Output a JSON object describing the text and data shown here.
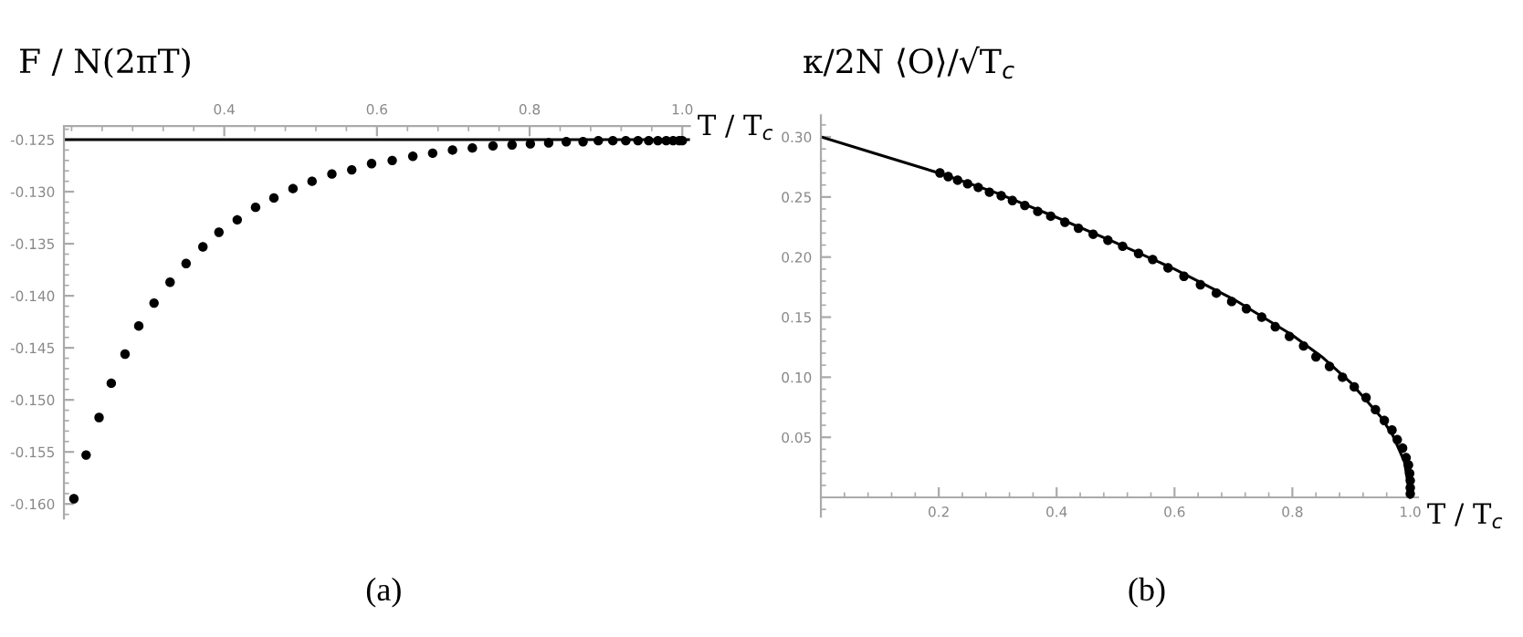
{
  "chart_data": [
    {
      "type": "scatter",
      "title": "(a)",
      "ylabel": "F / N(2πT)",
      "xlabel": "T / T$_{c}$",
      "marker": "circle",
      "grid": false,
      "legend": false,
      "xlim": [
        0.19,
        1.01
      ],
      "ylim": [
        -0.1614,
        -0.1237
      ],
      "xticks": [
        0.4,
        0.6,
        0.8,
        {
          "value": 1.0,
          "label": "1.0"
        }
      ],
      "yticks": [
        {
          "value": -0.125,
          "label": "-0.125"
        },
        {
          "value": -0.13,
          "label": "-0.130"
        },
        {
          "value": -0.135,
          "label": "-0.135"
        },
        {
          "value": -0.14,
          "label": "-0.140"
        },
        {
          "value": -0.145,
          "label": "-0.145"
        },
        {
          "value": -0.15,
          "label": "-0.150"
        },
        {
          "value": -0.155,
          "label": "-0.155"
        },
        {
          "value": -0.16,
          "label": "-0.160"
        }
      ],
      "ref_lines": [
        {
          "axis": "y",
          "value": -0.125,
          "color": "#000000",
          "line_style": "solid"
        }
      ],
      "series": [
        {
          "color": "#000000",
          "x": [
            0.203,
            0.219,
            0.236,
            0.252,
            0.27,
            0.288,
            0.308,
            0.329,
            0.35,
            0.372,
            0.393,
            0.417,
            0.441,
            0.465,
            0.49,
            0.515,
            0.541,
            0.567,
            0.593,
            0.62,
            0.647,
            0.673,
            0.699,
            0.725,
            0.752,
            0.777,
            0.801,
            0.825,
            0.848,
            0.87,
            0.89,
            0.909,
            0.926,
            0.942,
            0.956,
            0.968,
            0.979,
            0.988,
            0.996,
            1.0
          ],
          "values": [
            -0.1595,
            -0.1553,
            -0.1517,
            -0.1484,
            -0.1456,
            -0.1429,
            -0.1407,
            -0.1387,
            -0.1369,
            -0.1353,
            -0.1339,
            -0.1327,
            -0.1315,
            -0.1306,
            -0.1297,
            -0.129,
            -0.1283,
            -0.1279,
            -0.1273,
            -0.127,
            -0.1266,
            -0.1263,
            -0.126,
            -0.1258,
            -0.1256,
            -0.1255,
            -0.1254,
            -0.1253,
            -0.1252,
            -0.1252,
            -0.1251,
            -0.1251,
            -0.1251,
            -0.1251,
            -0.1251,
            -0.1251,
            -0.1251,
            -0.1251,
            -0.1251,
            -0.1251
          ]
        }
      ]
    },
    {
      "type": "scatter",
      "title": "(b)",
      "ylabel": "κ/2N ⟨O⟩/√T$_{c}$",
      "xlabel": "T / T$_{c}$",
      "grid": false,
      "legend": false,
      "xlim": [
        0,
        1.013
      ],
      "ylim": [
        -0.016,
        0.318
      ],
      "xticks": [
        0.2,
        0.4,
        0.6,
        0.8,
        {
          "value": 1.0,
          "label": "1.0"
        }
      ],
      "yticks": [
        {
          "value": 0.05,
          "label": "0.05"
        },
        {
          "value": 0.1,
          "label": "0.10"
        },
        {
          "value": 0.15,
          "label": "0.15"
        },
        {
          "value": 0.2,
          "label": "0.20"
        },
        {
          "value": 0.25,
          "label": "0.25"
        },
        {
          "value": 0.3,
          "label": "0.30"
        }
      ],
      "series": [
        {
          "type": "line",
          "color": "#000000",
          "line_style": "solid",
          "x": [
            0,
            0.1,
            0.2,
            0.3,
            0.4,
            0.5,
            0.6,
            0.7,
            0.8,
            0.85,
            0.9,
            0.95,
            0.97,
            0.99,
            1.0
          ],
          "values": [
            0.3,
            0.285,
            0.27,
            0.253,
            0.233,
            0.212,
            0.19,
            0.165,
            0.135,
            0.117,
            0.095,
            0.067,
            0.052,
            0.03,
            0.0
          ]
        },
        {
          "type": "scatter",
          "marker": "circle",
          "color": "#000000",
          "x": [
            0.202,
            0.216,
            0.232,
            0.249,
            0.267,
            0.286,
            0.306,
            0.325,
            0.346,
            0.368,
            0.39,
            0.414,
            0.437,
            0.462,
            0.487,
            0.512,
            0.539,
            0.563,
            0.589,
            0.616,
            0.644,
            0.671,
            0.697,
            0.722,
            0.748,
            0.771,
            0.795,
            0.819,
            0.84,
            0.863,
            0.885,
            0.905,
            0.925,
            0.941,
            0.956,
            0.969,
            0.978,
            0.987,
            0.993,
            0.997,
            0.999,
            1.0,
            1.0,
            1.0
          ],
          "values": [
            0.27,
            0.267,
            0.264,
            0.261,
            0.258,
            0.254,
            0.251,
            0.247,
            0.243,
            0.238,
            0.234,
            0.229,
            0.224,
            0.219,
            0.214,
            0.209,
            0.203,
            0.198,
            0.191,
            0.184,
            0.177,
            0.17,
            0.163,
            0.157,
            0.15,
            0.142,
            0.134,
            0.126,
            0.117,
            0.109,
            0.1,
            0.092,
            0.083,
            0.073,
            0.064,
            0.056,
            0.048,
            0.041,
            0.033,
            0.027,
            0.02,
            0.014,
            0.008,
            0.003
          ]
        }
      ]
    }
  ]
}
